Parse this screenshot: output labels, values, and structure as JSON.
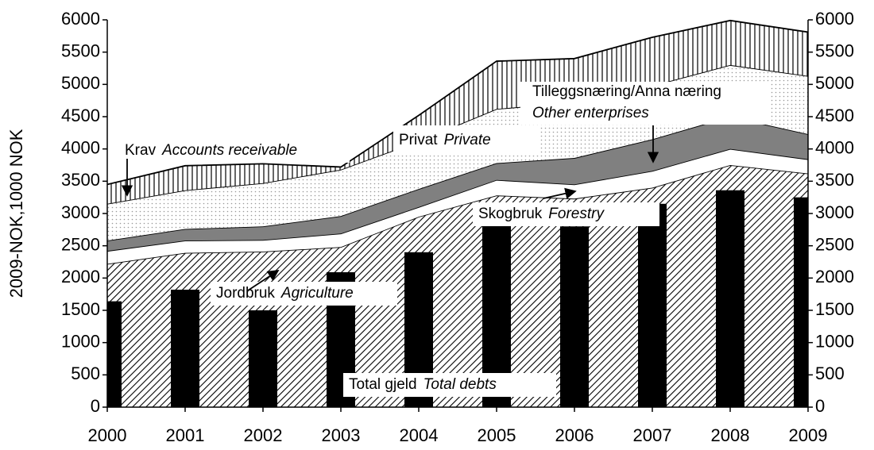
{
  "chart_data": {
    "type": "area",
    "y_label": "2009-NOK,1000 NOK",
    "x": [
      2000,
      2001,
      2002,
      2003,
      2004,
      2005,
      2006,
      2007,
      2008,
      2009
    ],
    "xlim": [
      2000,
      2009
    ],
    "xticks": [
      2000,
      2001,
      2002,
      2003,
      2004,
      2005,
      2006,
      2007,
      2008,
      2009
    ],
    "ylim": [
      0,
      6000
    ],
    "yticks": [
      0,
      500,
      1000,
      1500,
      2000,
      2500,
      3000,
      3500,
      4000,
      4500,
      5000,
      5500,
      6000
    ],
    "y2lim": [
      0,
      6000
    ],
    "y2ticks": [
      0,
      500,
      1000,
      1500,
      2000,
      2500,
      3000,
      3500,
      4000,
      4500,
      5000,
      5500,
      6000
    ],
    "series": [
      {
        "name": "Jordbruk",
        "name_en": "Agriculture",
        "color": "#000000",
        "pattern": "diagonal",
        "values": [
          2220,
          2390,
          2410,
          2480,
          2950,
          3280,
          3230,
          3400,
          3750,
          3620
        ]
      },
      {
        "name": "Skogbruk",
        "name_en": "Forestry",
        "color": "#ffffff",
        "pattern": "solid",
        "values": [
          200,
          190,
          180,
          210,
          150,
          240,
          220,
          260,
          250,
          220
        ]
      },
      {
        "name": "Tilleggsnæring/Anna næring",
        "name_en": "Other enterprises",
        "color": "#808080",
        "pattern": "solid",
        "values": [
          160,
          180,
          210,
          270,
          280,
          260,
          410,
          490,
          500,
          390
        ]
      },
      {
        "name": "Privat",
        "name_en": "Private",
        "color": "#999999",
        "pattern": "dotted",
        "values": [
          570,
          600,
          670,
          720,
          740,
          840,
          860,
          830,
          800,
          900
        ]
      },
      {
        "name": "Krav",
        "name_en": "Accounts receivable",
        "color": "#000000",
        "pattern": "vertical",
        "values": [
          300,
          380,
          300,
          40,
          400,
          740,
          680,
          750,
          690,
          680
        ]
      },
      {
        "name": "Total gjeld",
        "name_en": "Total debts",
        "type": "bar",
        "color": "#000000",
        "values": [
          1640,
          1820,
          1500,
          2090,
          2400,
          2900,
          2800,
          3150,
          3360,
          3250
        ]
      }
    ]
  }
}
